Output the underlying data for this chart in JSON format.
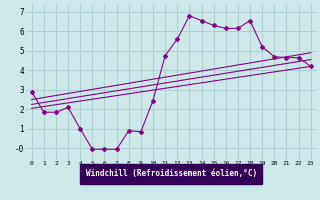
{
  "xlabel": "Windchill (Refroidissement éolien,°C)",
  "background_color": "#cde8e8",
  "line_color": "#880088",
  "grid_color": "#aacccc",
  "xlabel_bg": "#330055",
  "xlabel_fg": "#ffffff",
  "xlim": [
    -0.5,
    23.5
  ],
  "ylim": [
    -0.6,
    7.4
  ],
  "xticks": [
    0,
    1,
    2,
    3,
    4,
    5,
    6,
    7,
    8,
    9,
    10,
    11,
    12,
    13,
    14,
    15,
    16,
    17,
    18,
    19,
    20,
    21,
    22,
    23
  ],
  "yticks": [
    0,
    1,
    2,
    3,
    4,
    5,
    6,
    7
  ],
  "ytick_labels": [
    "-0",
    "1",
    "2",
    "3",
    "4",
    "5",
    "6",
    "7"
  ],
  "series1_x": [
    0,
    1,
    2,
    3,
    4,
    5,
    6,
    7,
    8,
    9,
    10,
    11,
    12,
    13,
    14,
    15,
    16,
    17,
    18,
    19,
    20,
    21,
    22,
    23
  ],
  "series1_y": [
    2.9,
    1.85,
    1.85,
    2.1,
    1.0,
    -0.05,
    -0.05,
    -0.05,
    0.9,
    0.85,
    2.45,
    4.75,
    5.6,
    6.8,
    6.55,
    6.3,
    6.15,
    6.15,
    6.55,
    5.2,
    4.7,
    4.65,
    4.65,
    4.2
  ],
  "series2_x": [
    0,
    23
  ],
  "series2_y": [
    2.05,
    4.2
  ],
  "series3_x": [
    0,
    23
  ],
  "series3_y": [
    2.25,
    4.55
  ],
  "series4_x": [
    0,
    23
  ],
  "series4_y": [
    2.5,
    4.9
  ]
}
